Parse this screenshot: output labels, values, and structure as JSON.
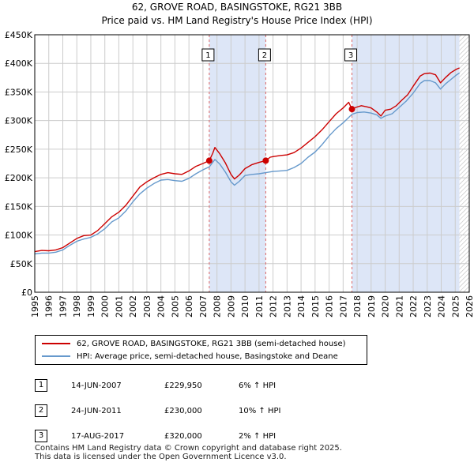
{
  "header": {
    "title_line1": "62, GROVE ROAD, BASINGSTOKE, RG21 3BB",
    "title_line2": "Price paid vs. HM Land Registry's House Price Index (HPI)"
  },
  "colors": {
    "property": "#cc0000",
    "hpi": "#6699cc",
    "grid": "#cccccc",
    "shade": "#dde6f7",
    "marker_line": "#dd6666"
  },
  "chart_data": {
    "type": "line",
    "title": "62, GROVE ROAD, BASINGSTOKE, RG21 3BB — Price paid vs. HM Land Registry's House Price Index (HPI)",
    "xlabel": "",
    "ylabel": "",
    "xlim": [
      1995.0,
      2026.0
    ],
    "ylim": [
      0,
      450000
    ],
    "grid": true,
    "yticks": [
      {
        "value": 0,
        "label": "£0"
      },
      {
        "value": 50000,
        "label": "£50K"
      },
      {
        "value": 100000,
        "label": "£100K"
      },
      {
        "value": 150000,
        "label": "£150K"
      },
      {
        "value": 200000,
        "label": "£200K"
      },
      {
        "value": 250000,
        "label": "£250K"
      },
      {
        "value": 300000,
        "label": "£300K"
      },
      {
        "value": 350000,
        "label": "£350K"
      },
      {
        "value": 400000,
        "label": "£400K"
      },
      {
        "value": 450000,
        "label": "£450K"
      }
    ],
    "xticks": [
      "1995",
      "1996",
      "1997",
      "1998",
      "1999",
      "2000",
      "2001",
      "2002",
      "2003",
      "2004",
      "2005",
      "2006",
      "2007",
      "2008",
      "2009",
      "2010",
      "2011",
      "2012",
      "2013",
      "2014",
      "2015",
      "2016",
      "2017",
      "2018",
      "2019",
      "2020",
      "2021",
      "2022",
      "2023",
      "2024",
      "2025",
      "2026"
    ],
    "series": [
      {
        "name": "62, GROVE ROAD, BASINGSTOKE, RG21 3BB (semi-detached house)",
        "color": "#cc0000",
        "points": [
          [
            1995.0,
            71000
          ],
          [
            1995.5,
            73000
          ],
          [
            1996.0,
            72500
          ],
          [
            1996.5,
            74000
          ],
          [
            1997.0,
            78000
          ],
          [
            1997.5,
            86000
          ],
          [
            1998.0,
            94000
          ],
          [
            1998.5,
            99000
          ],
          [
            1999.0,
            100000
          ],
          [
            1999.5,
            108000
          ],
          [
            2000.0,
            120000
          ],
          [
            2000.5,
            132000
          ],
          [
            2001.0,
            140000
          ],
          [
            2001.5,
            152000
          ],
          [
            2002.0,
            168000
          ],
          [
            2002.5,
            184000
          ],
          [
            2003.0,
            193000
          ],
          [
            2003.5,
            200000
          ],
          [
            2004.0,
            206000
          ],
          [
            2004.5,
            209000
          ],
          [
            2005.0,
            207000
          ],
          [
            2005.5,
            206000
          ],
          [
            2006.0,
            212000
          ],
          [
            2006.5,
            220000
          ],
          [
            2007.0,
            225000
          ],
          [
            2007.45,
            229950
          ],
          [
            2007.7,
            243000
          ],
          [
            2007.85,
            253000
          ],
          [
            2008.2,
            242000
          ],
          [
            2008.6,
            226000
          ],
          [
            2009.0,
            206000
          ],
          [
            2009.25,
            198000
          ],
          [
            2009.6,
            205000
          ],
          [
            2010.0,
            216000
          ],
          [
            2010.5,
            223000
          ],
          [
            2011.0,
            227000
          ],
          [
            2011.48,
            230000
          ],
          [
            2011.8,
            236000
          ],
          [
            2012.0,
            237000
          ],
          [
            2012.5,
            239000
          ],
          [
            2013.0,
            240000
          ],
          [
            2013.5,
            244000
          ],
          [
            2014.0,
            252000
          ],
          [
            2014.5,
            262000
          ],
          [
            2015.0,
            272000
          ],
          [
            2015.5,
            284000
          ],
          [
            2016.0,
            298000
          ],
          [
            2016.5,
            312000
          ],
          [
            2017.0,
            322000
          ],
          [
            2017.4,
            332000
          ],
          [
            2017.63,
            320000
          ],
          [
            2017.9,
            323000
          ],
          [
            2018.3,
            326000
          ],
          [
            2018.7,
            324000
          ],
          [
            2019.0,
            322000
          ],
          [
            2019.4,
            315000
          ],
          [
            2019.7,
            308000
          ],
          [
            2020.0,
            318000
          ],
          [
            2020.4,
            320000
          ],
          [
            2020.8,
            326000
          ],
          [
            2021.2,
            336000
          ],
          [
            2021.6,
            345000
          ],
          [
            2022.0,
            360000
          ],
          [
            2022.5,
            378000
          ],
          [
            2022.8,
            382000
          ],
          [
            2023.2,
            383000
          ],
          [
            2023.6,
            380000
          ],
          [
            2023.95,
            366000
          ],
          [
            2024.3,
            375000
          ],
          [
            2024.7,
            384000
          ],
          [
            2025.1,
            390000
          ],
          [
            2025.3,
            392000
          ]
        ]
      },
      {
        "name": "HPI: Average price, semi-detached house, Basingstoke and Deane",
        "color": "#6699cc",
        "points": [
          [
            1995.0,
            67000
          ],
          [
            1995.5,
            68500
          ],
          [
            1996.0,
            68500
          ],
          [
            1996.5,
            70000
          ],
          [
            1997.0,
            74000
          ],
          [
            1997.5,
            82000
          ],
          [
            1998.0,
            89000
          ],
          [
            1998.5,
            93000
          ],
          [
            1999.0,
            96000
          ],
          [
            1999.5,
            102000
          ],
          [
            2000.0,
            111000
          ],
          [
            2000.5,
            123000
          ],
          [
            2001.0,
            130000
          ],
          [
            2001.5,
            142000
          ],
          [
            2002.0,
            158000
          ],
          [
            2002.5,
            172000
          ],
          [
            2003.0,
            182000
          ],
          [
            2003.5,
            190000
          ],
          [
            2004.0,
            196000
          ],
          [
            2004.5,
            197000
          ],
          [
            2005.0,
            195000
          ],
          [
            2005.5,
            194000
          ],
          [
            2006.0,
            199000
          ],
          [
            2006.5,
            207000
          ],
          [
            2007.0,
            214000
          ],
          [
            2007.45,
            219000
          ],
          [
            2007.85,
            232000
          ],
          [
            2008.2,
            224000
          ],
          [
            2008.6,
            210000
          ],
          [
            2009.0,
            193000
          ],
          [
            2009.25,
            187000
          ],
          [
            2009.6,
            194000
          ],
          [
            2010.0,
            204000
          ],
          [
            2010.5,
            206000
          ],
          [
            2011.0,
            207000
          ],
          [
            2011.48,
            209000
          ],
          [
            2012.0,
            211000
          ],
          [
            2012.5,
            212000
          ],
          [
            2013.0,
            213000
          ],
          [
            2013.5,
            218000
          ],
          [
            2014.0,
            225000
          ],
          [
            2014.5,
            236000
          ],
          [
            2015.0,
            245000
          ],
          [
            2015.5,
            258000
          ],
          [
            2016.0,
            273000
          ],
          [
            2016.5,
            286000
          ],
          [
            2017.0,
            296000
          ],
          [
            2017.63,
            311000
          ],
          [
            2018.0,
            314000
          ],
          [
            2018.5,
            315000
          ],
          [
            2019.0,
            313000
          ],
          [
            2019.4,
            310000
          ],
          [
            2019.7,
            304000
          ],
          [
            2020.0,
            308000
          ],
          [
            2020.5,
            312000
          ],
          [
            2021.0,
            323000
          ],
          [
            2021.5,
            334000
          ],
          [
            2022.0,
            348000
          ],
          [
            2022.5,
            365000
          ],
          [
            2022.8,
            370000
          ],
          [
            2023.2,
            370000
          ],
          [
            2023.6,
            366000
          ],
          [
            2023.95,
            355000
          ],
          [
            2024.3,
            364000
          ],
          [
            2024.7,
            372000
          ],
          [
            2025.1,
            380000
          ],
          [
            2025.3,
            383000
          ]
        ]
      }
    ],
    "sales": [
      {
        "id": "1",
        "x": 2007.45,
        "price": 229950
      },
      {
        "id": "2",
        "x": 2011.48,
        "price": 230000
      },
      {
        "id": "3",
        "x": 2017.63,
        "price": 320000
      }
    ],
    "shaded_ranges": [
      [
        2007.45,
        2011.48
      ],
      [
        2017.63,
        2025.3
      ]
    ],
    "hatch_from": 2025.3
  },
  "legend": {
    "property_label": "62, GROVE ROAD, BASINGSTOKE, RG21 3BB (semi-detached house)",
    "hpi_label": "HPI: Average price, semi-detached house, Basingstoke and Deane"
  },
  "sales_table": [
    {
      "id": "1",
      "date": "14-JUN-2007",
      "price": "£229,950",
      "hpi": "6% ↑ HPI"
    },
    {
      "id": "2",
      "date": "24-JUN-2011",
      "price": "£230,000",
      "hpi": "10% ↑ HPI"
    },
    {
      "id": "3",
      "date": "17-AUG-2017",
      "price": "£320,000",
      "hpi": "2% ↑ HPI"
    }
  ],
  "footer": {
    "line1": "Contains HM Land Registry data © Crown copyright and database right 2025.",
    "line2": "This data is licensed under the Open Government Licence v3.0."
  }
}
